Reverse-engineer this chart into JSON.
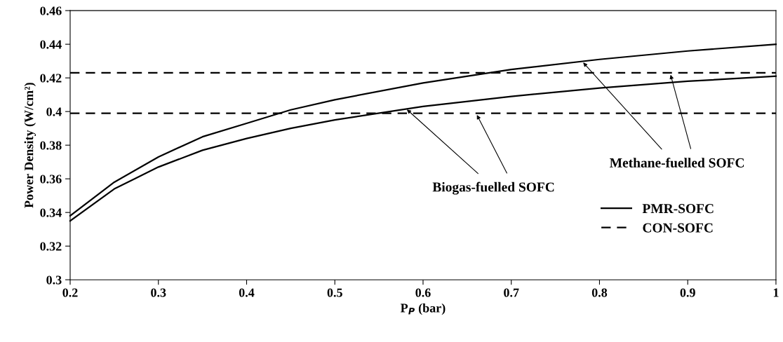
{
  "chart_data": {
    "type": "line",
    "xlabel": "P$_{P}$ (bar)",
    "ylabel": "Power Density (W/cm²)",
    "x": [
      0.2,
      0.25,
      0.3,
      0.35,
      0.4,
      0.45,
      0.5,
      0.6,
      0.7,
      0.8,
      0.9,
      1
    ],
    "series": [
      {
        "name": "PMR-SOFC",
        "color": "#000000",
        "line_style": "solid",
        "values": [
          0.338,
          0.358,
          0.373,
          0.385,
          0.393,
          0.401,
          0.407,
          0.417,
          0.425,
          0.431,
          0.436,
          0.44
        ]
      },
      {
        "color": "#000000",
        "line_style": "solid",
        "values": [
          0.335,
          0.354,
          0.367,
          0.377,
          0.384,
          0.39,
          0.395,
          0.403,
          0.409,
          0.414,
          0.418,
          0.421
        ]
      },
      {
        "name": "CON-SOFC",
        "color": "#000000",
        "line_style": "dashed",
        "values": [
          0.423,
          0.423,
          0.423,
          0.423,
          0.423,
          0.423,
          0.423,
          0.423,
          0.423,
          0.423,
          0.423,
          0.423
        ]
      },
      {
        "color": "#000000",
        "line_style": "dashed",
        "values": [
          0.399,
          0.399,
          0.399,
          0.399,
          0.399,
          0.399,
          0.399,
          0.399,
          0.399,
          0.399,
          0.399,
          0.399
        ]
      }
    ],
    "annotations": [
      {
        "text": "Methane-fuelled SOFC",
        "x": 0.78,
        "y": 0.43
      },
      {
        "text": "Biogas-fuelled SOFC",
        "x": 0.58,
        "y": 0.402
      }
    ],
    "xlim": [
      0.2,
      1
    ],
    "ylim": [
      0.3,
      0.46
    ],
    "xticks": [
      0.2,
      0.3,
      0.4,
      0.5,
      0.6,
      0.7,
      0.8,
      0.9,
      1
    ],
    "yticks": [
      0.3,
      0.32,
      0.34,
      0.36,
      0.38,
      0.4,
      0.42,
      0.44,
      0.46
    ],
    "legend": "lower right",
    "grid": false,
    "marker": "none"
  }
}
